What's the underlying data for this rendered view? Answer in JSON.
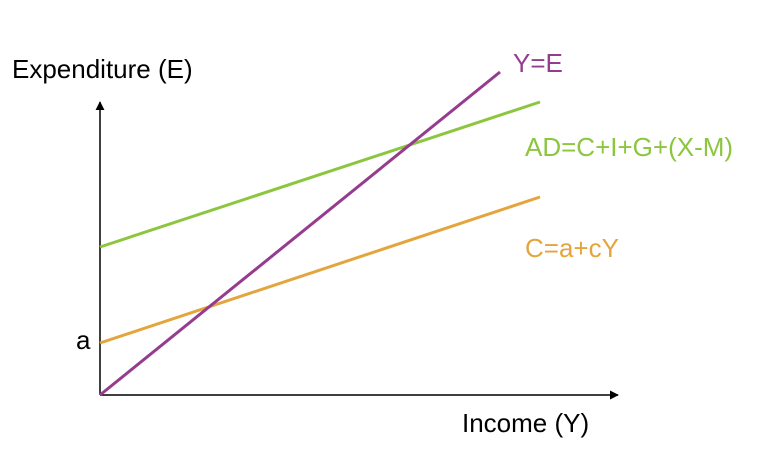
{
  "axes": {
    "y_label": "Expenditure (E)",
    "x_label": "Income (Y)",
    "intercept_label": "a"
  },
  "lines": [
    {
      "label": "Y=E"
    },
    {
      "label": "AD=C+I+G+(X-M)"
    },
    {
      "label": "C=a+cY"
    }
  ]
}
